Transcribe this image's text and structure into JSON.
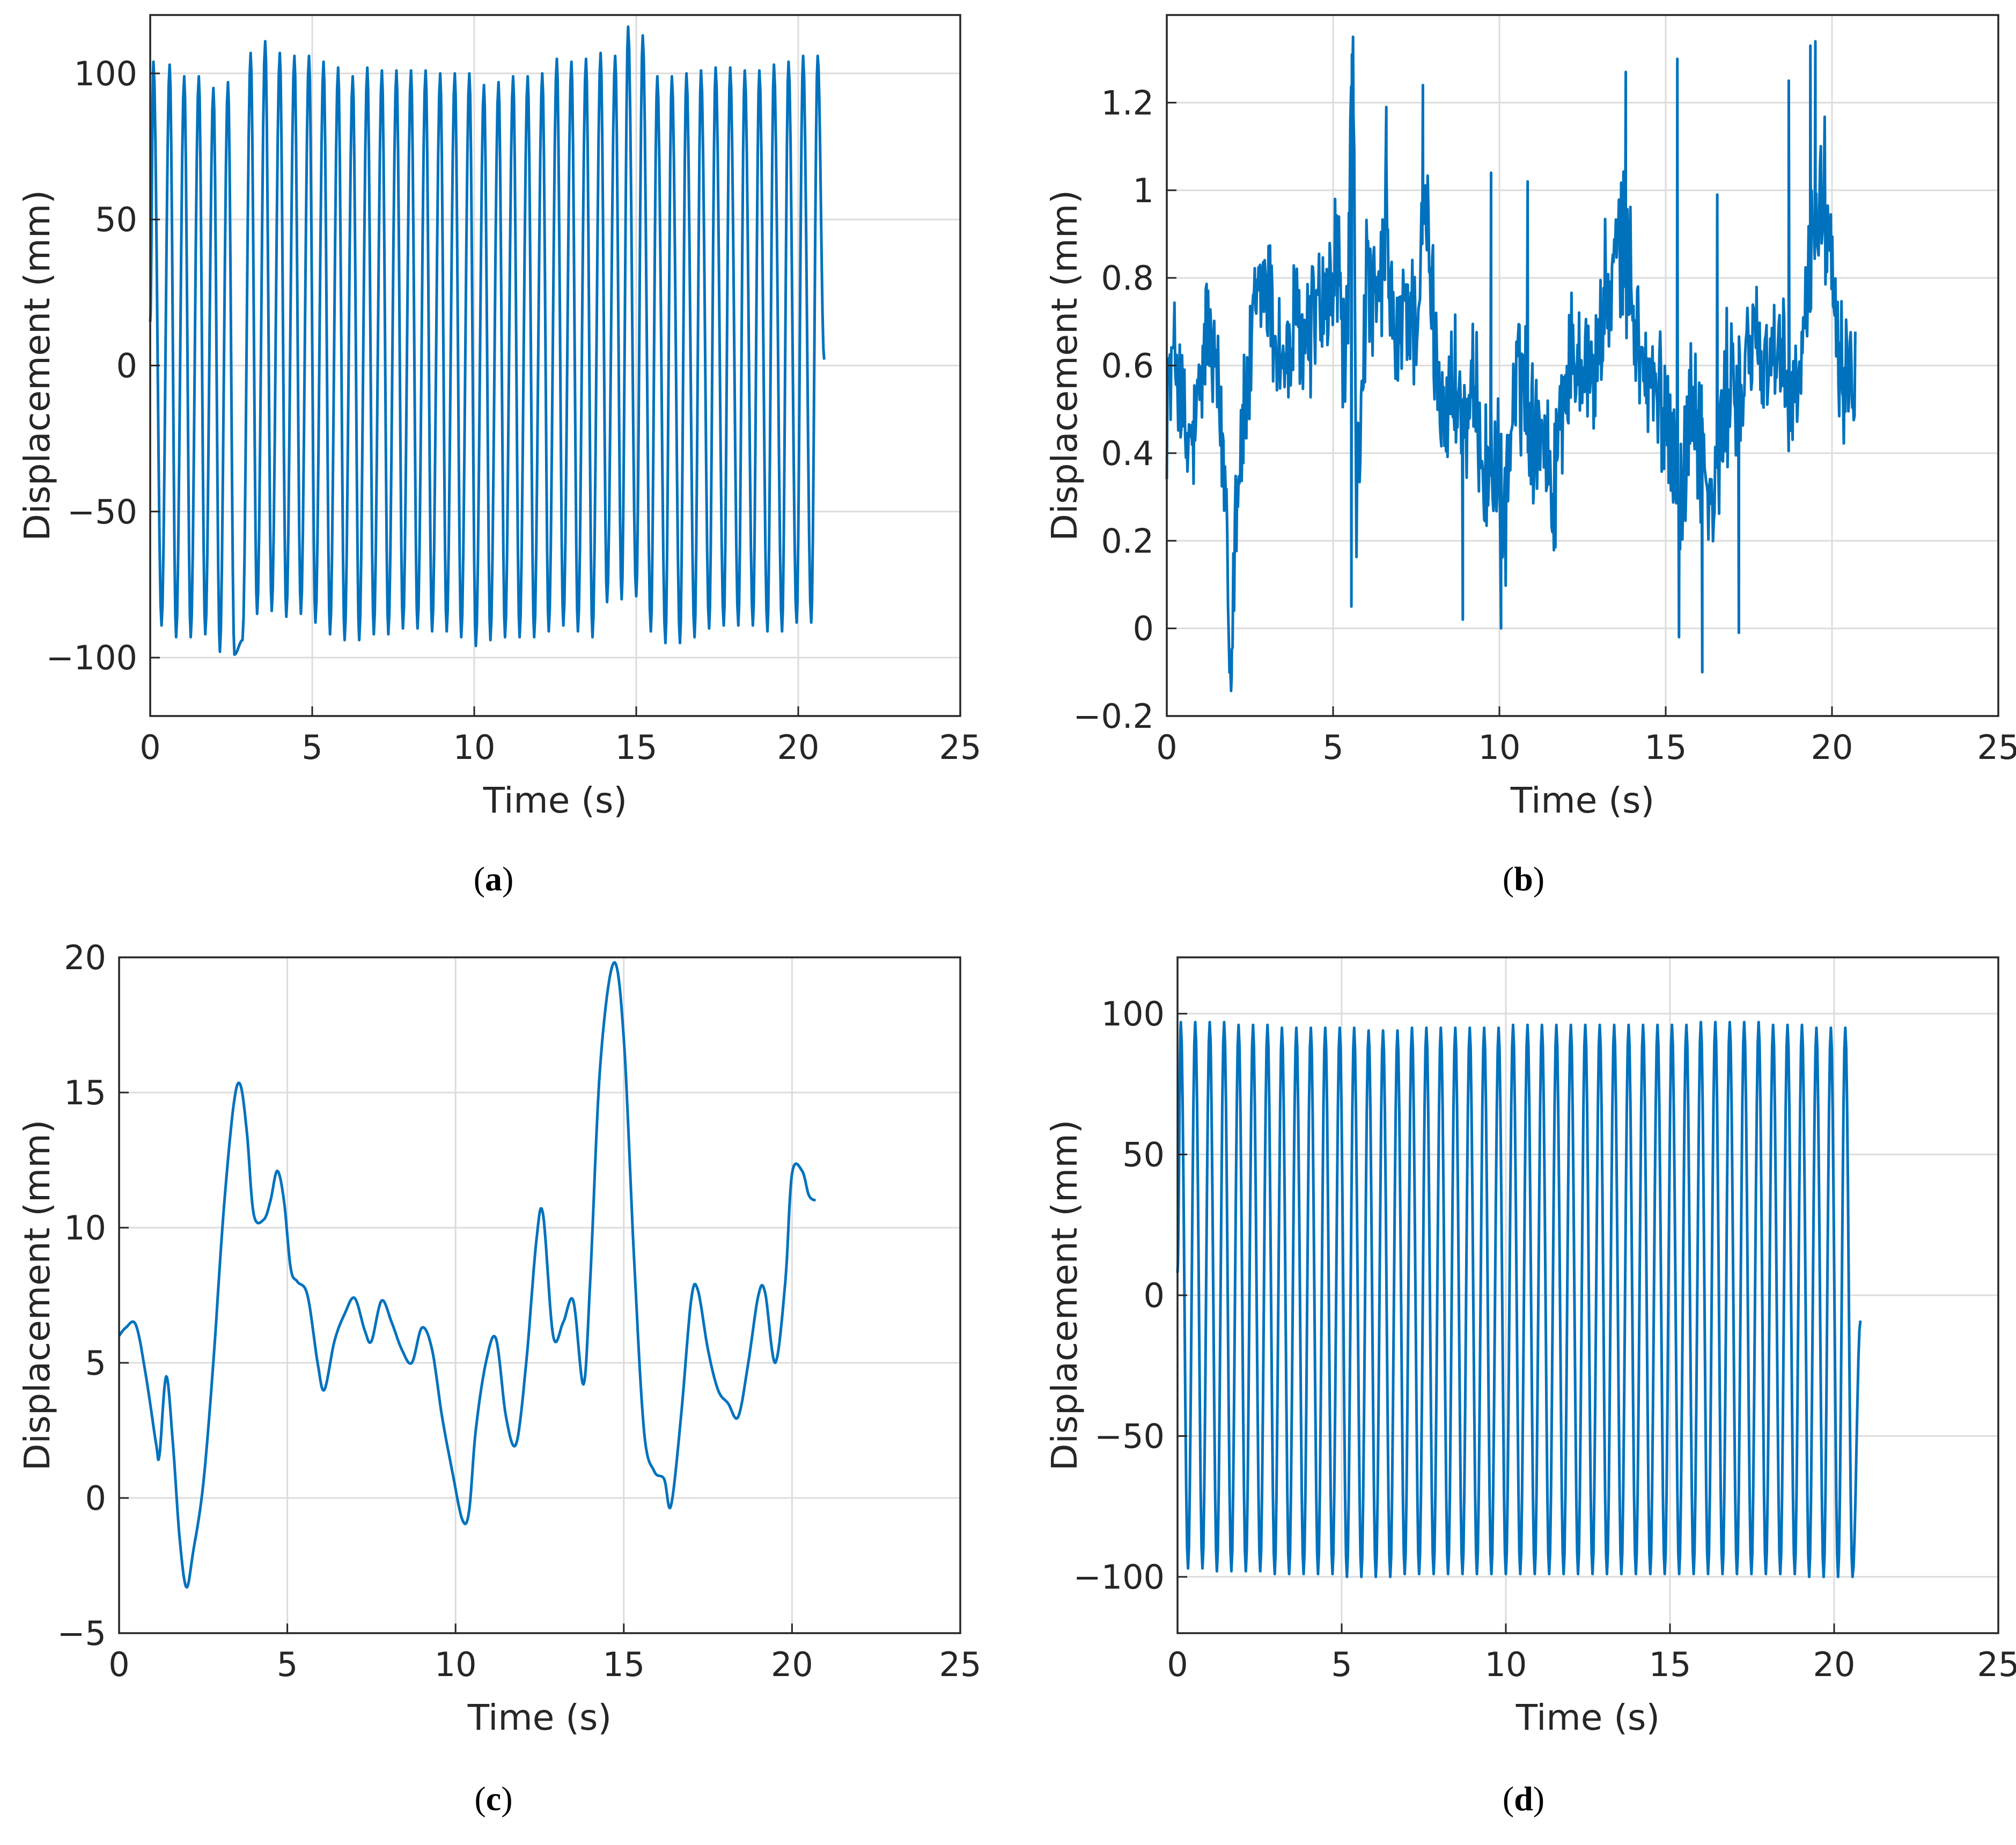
{
  "colors": {
    "line": "#0072BD",
    "grid": "#dcdcdc",
    "axis": "#262626",
    "background": "#ffffff"
  },
  "chart_data": [
    {
      "panel": "a",
      "caption": {
        "open": "(",
        "letter": "a",
        "close": ")"
      },
      "type": "line",
      "xlabel": "Time (s)",
      "ylabel": "Displacement (mm)",
      "xlim": [
        0,
        25
      ],
      "ylim": [
        -120,
        120
      ],
      "xticks": [
        0,
        5,
        10,
        15,
        20,
        25
      ],
      "yticks": [
        -100,
        -50,
        0,
        50,
        100
      ],
      "grid": true,
      "series": [
        {
          "kind": "oscillation",
          "start": [
            0,
            15
          ],
          "end": [
            20.8,
            2
          ],
          "peaks": [
            [
              0.1,
              104
            ],
            [
              0.6,
              103
            ],
            [
              1.05,
              99
            ],
            [
              1.5,
              99
            ],
            [
              1.95,
              95
            ],
            [
              2.4,
              97
            ],
            [
              3.1,
              107
            ],
            [
              3.55,
              111
            ],
            [
              4.0,
              107
            ],
            [
              4.45,
              106
            ],
            [
              4.9,
              106
            ],
            [
              5.35,
              104
            ],
            [
              5.8,
              102
            ],
            [
              6.25,
              99
            ],
            [
              6.7,
              102
            ],
            [
              7.15,
              101
            ],
            [
              7.6,
              101
            ],
            [
              8.05,
              101
            ],
            [
              8.5,
              101
            ],
            [
              8.95,
              100
            ],
            [
              9.4,
              100
            ],
            [
              9.85,
              100
            ],
            [
              10.3,
              96
            ],
            [
              10.75,
              97
            ],
            [
              11.2,
              99
            ],
            [
              11.65,
              99
            ],
            [
              12.1,
              100
            ],
            [
              12.55,
              105
            ],
            [
              13.0,
              104
            ],
            [
              13.45,
              105
            ],
            [
              13.9,
              107
            ],
            [
              14.35,
              106
            ],
            [
              14.75,
              116
            ],
            [
              15.2,
              113
            ],
            [
              15.65,
              99
            ],
            [
              16.1,
              99
            ],
            [
              16.55,
              100
            ],
            [
              17.0,
              101
            ],
            [
              17.45,
              102
            ],
            [
              17.9,
              102
            ],
            [
              18.35,
              101
            ],
            [
              18.8,
              101
            ],
            [
              19.25,
              103
            ],
            [
              19.7,
              104
            ],
            [
              20.15,
              106
            ],
            [
              20.6,
              106
            ]
          ],
          "troughs": [
            [
              0.35,
              -89
            ],
            [
              0.8,
              -93
            ],
            [
              1.25,
              -93
            ],
            [
              1.7,
              -92
            ],
            [
              2.15,
              -98
            ],
            [
              2.6,
              -99
            ],
            [
              2.85,
              -94
            ],
            [
              3.3,
              -85
            ],
            [
              3.75,
              -84
            ],
            [
              4.2,
              -86
            ],
            [
              4.65,
              -85
            ],
            [
              5.1,
              -88
            ],
            [
              5.55,
              -92
            ],
            [
              6.0,
              -94
            ],
            [
              6.45,
              -94
            ],
            [
              6.9,
              -92
            ],
            [
              7.35,
              -92
            ],
            [
              7.8,
              -90
            ],
            [
              8.25,
              -90
            ],
            [
              8.7,
              -91
            ],
            [
              9.15,
              -91
            ],
            [
              9.6,
              -93
            ],
            [
              10.05,
              -96
            ],
            [
              10.5,
              -94
            ],
            [
              10.95,
              -93
            ],
            [
              11.4,
              -93
            ],
            [
              11.85,
              -93
            ],
            [
              12.3,
              -91
            ],
            [
              12.75,
              -89
            ],
            [
              13.2,
              -91
            ],
            [
              13.65,
              -93
            ],
            [
              14.1,
              -81
            ],
            [
              14.55,
              -80
            ],
            [
              15.0,
              -79
            ],
            [
              15.45,
              -91
            ],
            [
              15.9,
              -95
            ],
            [
              16.35,
              -95
            ],
            [
              16.8,
              -93
            ],
            [
              17.25,
              -90
            ],
            [
              17.7,
              -89
            ],
            [
              18.15,
              -89
            ],
            [
              18.6,
              -89
            ],
            [
              19.05,
              -91
            ],
            [
              19.5,
              -91
            ],
            [
              19.95,
              -88
            ],
            [
              20.4,
              -88
            ]
          ]
        }
      ]
    },
    {
      "panel": "b",
      "caption": {
        "open": "(",
        "letter": "b",
        "close": ")"
      },
      "type": "line",
      "xlabel": "Time (s)",
      "ylabel": "Displacement (mm)",
      "xlim": [
        0,
        25
      ],
      "ylim": [
        -0.2,
        1.4
      ],
      "xticks": [
        0,
        5,
        10,
        15,
        20,
        25
      ],
      "yticks": [
        -0.2,
        0,
        0.2,
        0.4,
        0.6,
        0.8,
        1,
        1.2
      ],
      "ytick_labels": [
        "−0.2",
        "0",
        "0.2",
        "0.4",
        "0.6",
        "0.8",
        "1",
        "1.2"
      ],
      "grid": true,
      "series": [
        {
          "kind": "noisy",
          "x": [
            0,
            0.3,
            0.6,
            0.9,
            1.2,
            1.5,
            1.8,
            1.9,
            2.1,
            2.4,
            2.7,
            3.0,
            3.3,
            3.6,
            3.9,
            4.2,
            4.5,
            4.8,
            5.1,
            5.4,
            5.6,
            5.7,
            6.0,
            6.3,
            6.6,
            6.9,
            7.2,
            7.5,
            7.8,
            8.1,
            8.4,
            8.7,
            9.0,
            9.3,
            9.6,
            9.9,
            10.1,
            10.4,
            10.7,
            11.0,
            11.3,
            11.6,
            11.9,
            12.2,
            12.5,
            12.8,
            13.1,
            13.4,
            13.7,
            14.0,
            14.3,
            14.6,
            14.9,
            15.2,
            15.5,
            15.8,
            16.1,
            16.4,
            16.7,
            17.0,
            17.3,
            17.6,
            17.9,
            18.2,
            18.5,
            18.8,
            19.1,
            19.4,
            19.7,
            20.0,
            20.3,
            20.7
          ],
          "y": [
            0.55,
            0.62,
            0.4,
            0.45,
            0.7,
            0.55,
            0.3,
            -0.1,
            0.35,
            0.5,
            0.75,
            0.8,
            0.65,
            0.6,
            0.7,
            0.65,
            0.75,
            0.7,
            0.85,
            0.6,
            1.35,
            0.25,
            0.8,
            0.7,
            0.9,
            0.6,
            0.75,
            0.7,
            0.95,
            0.6,
            0.5,
            0.55,
            0.45,
            0.5,
            0.35,
            0.4,
            0.2,
            0.5,
            0.6,
            0.45,
            0.5,
            0.3,
            0.55,
            0.6,
            0.65,
            0.55,
            0.7,
            0.8,
            0.9,
            0.75,
            0.6,
            0.55,
            0.5,
            0.45,
            0.3,
            0.55,
            0.4,
            0.25,
            0.45,
            0.6,
            0.5,
            0.7,
            0.6,
            0.65,
            0.55,
            0.5,
            0.6,
            0.9,
            1.0,
            0.85,
            0.6,
            0.6
          ],
          "noise": 0.22,
          "spikes": [
            [
              5.6,
              1.35
            ],
            [
              6.6,
              1.19
            ],
            [
              7.7,
              1.24
            ],
            [
              9.75,
              1.04
            ],
            [
              10.85,
              1.02
            ],
            [
              13.8,
              1.27
            ],
            [
              15.35,
              1.3
            ],
            [
              16.55,
              0.99
            ],
            [
              18.7,
              1.25
            ],
            [
              19.35,
              1.33
            ],
            [
              19.5,
              1.34
            ],
            [
              1.95,
              -0.11
            ],
            [
              16.1,
              -0.1
            ],
            [
              15.4,
              -0.02
            ],
            [
              10.05,
              0.0
            ],
            [
              17.2,
              -0.01
            ],
            [
              8.9,
              0.02
            ],
            [
              5.55,
              0.05
            ]
          ]
        }
      ]
    },
    {
      "panel": "c",
      "caption": {
        "open": "(",
        "letter": "c",
        "close": ")"
      },
      "type": "line",
      "xlabel": "Time (s)",
      "ylabel": "Displacement (mm)",
      "xlim": [
        0,
        25
      ],
      "ylim": [
        -5,
        20
      ],
      "xticks": [
        0,
        5,
        10,
        15,
        20,
        25
      ],
      "yticks": [
        -5,
        0,
        5,
        10,
        15,
        20
      ],
      "ytick_labels": [
        "−5",
        "0",
        "5",
        "10",
        "15",
        "20"
      ],
      "grid": true,
      "series": [
        {
          "kind": "smooth",
          "x": [
            0,
            0.2,
            0.5,
            0.8,
            1.1,
            1.2,
            1.4,
            1.6,
            1.8,
            2.0,
            2.2,
            2.5,
            2.8,
            3.1,
            3.4,
            3.6,
            3.8,
            4.0,
            4.3,
            4.5,
            4.7,
            4.9,
            5.1,
            5.3,
            5.6,
            5.9,
            6.1,
            6.4,
            6.7,
            7.0,
            7.3,
            7.5,
            7.8,
            8.1,
            8.4,
            8.7,
            9.0,
            9.3,
            9.6,
            9.9,
            10.2,
            10.4,
            10.6,
            10.9,
            11.2,
            11.5,
            11.8,
            12.1,
            12.4,
            12.6,
            12.9,
            13.2,
            13.5,
            13.8,
            14.0,
            14.3,
            14.7,
            15.0,
            15.3,
            15.6,
            15.9,
            16.2,
            16.4,
            16.7,
            17.0,
            17.2,
            17.5,
            17.8,
            18.1,
            18.4,
            18.7,
            19.0,
            19.2,
            19.5,
            19.8,
            20.0,
            20.3,
            20.5,
            20.7
          ],
          "y": [
            6.0,
            6.3,
            6.4,
            4.5,
            2.0,
            1.6,
            4.5,
            2.0,
            -1.5,
            -3.3,
            -2.0,
            0.5,
            5.0,
            10.5,
            14.5,
            15.3,
            13.5,
            10.5,
            10.3,
            11.0,
            12.1,
            11.0,
            8.5,
            8.0,
            7.5,
            5.0,
            4.0,
            5.8,
            6.8,
            7.4,
            6.2,
            5.8,
            7.3,
            6.5,
            5.5,
            5.0,
            6.3,
            5.5,
            3.0,
            1.0,
            -0.8,
            -0.5,
            2.5,
            5.0,
            5.9,
            3.0,
            2.0,
            5.0,
            9.5,
            10.5,
            6.0,
            6.5,
            7.3,
            4.2,
            8.0,
            16.0,
            19.8,
            17.0,
            9.0,
            2.5,
            1.0,
            0.7,
            -0.3,
            3.0,
            7.3,
            7.7,
            5.5,
            4.0,
            3.5,
            3.0,
            5.0,
            7.5,
            7.6,
            5.0,
            8.0,
            12.0,
            12.1,
            11.2,
            11.0
          ]
        }
      ]
    },
    {
      "panel": "d",
      "caption": {
        "open": "(",
        "letter": "d",
        "close": ")"
      },
      "type": "line",
      "xlabel": "Time (s)",
      "ylabel": "Displacement (mm)",
      "xlim": [
        0,
        25
      ],
      "ylim": [
        -120,
        120
      ],
      "xticks": [
        0,
        5,
        10,
        15,
        20,
        25
      ],
      "yticks": [
        -100,
        -50,
        0,
        50,
        100
      ],
      "grid": true,
      "series": [
        {
          "kind": "regular",
          "start": [
            0,
            8
          ],
          "end": [
            20.8,
            -9
          ],
          "period": 0.44,
          "first_peak": 0.1,
          "cycles": 47,
          "peak_values": [
            97,
            97,
            97,
            97,
            96,
            96,
            96,
            95,
            95,
            95,
            95,
            95,
            95,
            94,
            94,
            94,
            95,
            95,
            95,
            95,
            95,
            95,
            95,
            96,
            96,
            96,
            96,
            96,
            96,
            96,
            96,
            96,
            96,
            96,
            96,
            96,
            97,
            97,
            97,
            97,
            97,
            96,
            96,
            96,
            95,
            95,
            95
          ],
          "trough_values": [
            -97,
            -97,
            -98,
            -98,
            -98,
            -98,
            -99,
            -99,
            -99,
            -99,
            -99,
            -100,
            -100,
            -100,
            -100,
            -99,
            -99,
            -99,
            -99,
            -99,
            -99,
            -99,
            -99,
            -99,
            -99,
            -99,
            -99,
            -99,
            -99,
            -99,
            -99,
            -99,
            -99,
            -99,
            -99,
            -99,
            -99,
            -99,
            -99,
            -99,
            -99,
            -99,
            -99,
            -100,
            -100,
            -100,
            -100
          ]
        }
      ]
    }
  ]
}
